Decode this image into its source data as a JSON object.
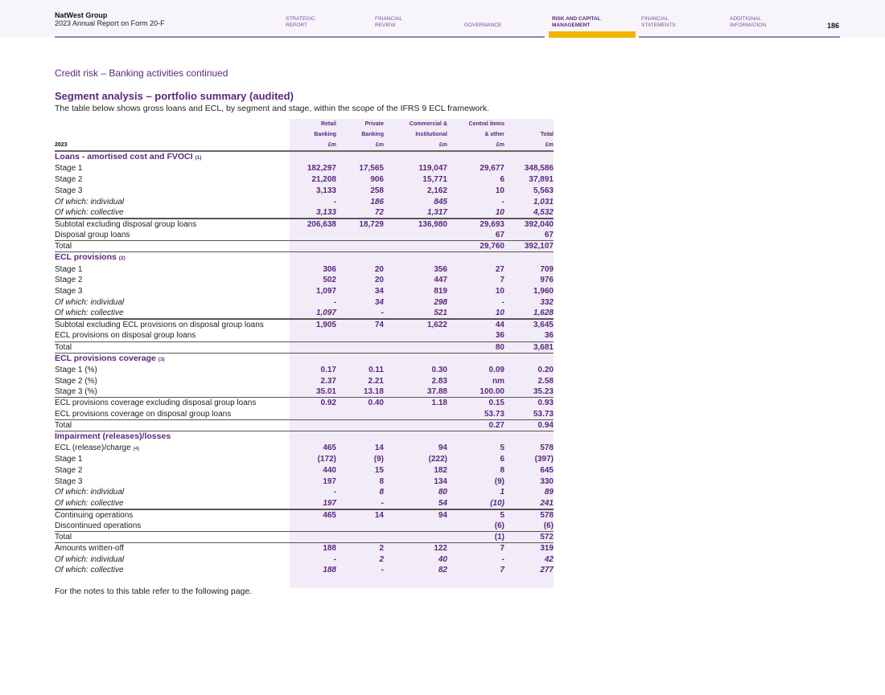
{
  "header": {
    "company": "NatWest Group",
    "report": "2023 Annual Report on Form 20-F",
    "page": "186",
    "nav": [
      {
        "line1": "STRATEGIC",
        "line2": "REPORT"
      },
      {
        "line1": "FINANCIAL",
        "line2": "REVIEW"
      },
      {
        "line1": "",
        "line2": "GOVERNANCE"
      },
      {
        "line1": "RISK AND CAPITAL",
        "line2": "MANAGEMENT",
        "active": true
      },
      {
        "line1": "FINANCIAL",
        "line2": "STATEMENTS"
      },
      {
        "line1": "ADDITIONAL",
        "line2": "INFORMATION"
      }
    ]
  },
  "breadcrumb": "Credit risk – Banking activities continued",
  "title": "Segment analysis – portfolio summary (audited)",
  "subtitle": "The table below shows gross loans and ECL, by segment and stage, within the scope of the IFRS 9 ECL framework.",
  "table": {
    "year": "2023",
    "columns": [
      [
        "Retail",
        "Banking",
        "£m"
      ],
      [
        "Private",
        "Banking",
        "£m"
      ],
      [
        "Commercial &",
        "Institutional",
        "£m"
      ],
      [
        "Central items",
        "& other",
        "£m"
      ],
      [
        "",
        "Total",
        "£m"
      ]
    ],
    "sections": [
      {
        "heading": "Loans - amortised cost and FVOCI",
        "note": "(1)",
        "rows": [
          {
            "label": "Stage 1",
            "values": [
              "182,297",
              "17,565",
              "119,047",
              "29,677",
              "348,586"
            ]
          },
          {
            "label": "Stage 2",
            "values": [
              "21,208",
              "906",
              "15,771",
              "6",
              "37,891"
            ]
          },
          {
            "label": "Stage 3",
            "values": [
              "3,133",
              "258",
              "2,162",
              "10",
              "5,563"
            ]
          },
          {
            "label": "Of which: individual",
            "values": [
              "-",
              "186",
              "845",
              "-",
              "1,031"
            ],
            "italic": true
          },
          {
            "label": "Of which: collective",
            "values": [
              "3,133",
              "72",
              "1,317",
              "10",
              "4,532"
            ],
            "italic": true
          },
          {
            "label": "Subtotal excluding disposal group loans",
            "values": [
              "206,638",
              "18,729",
              "136,980",
              "29,693",
              "392,040"
            ],
            "top": "thick"
          },
          {
            "label": "Disposal group loans",
            "values": [
              "",
              "",
              "",
              "67",
              "67"
            ]
          },
          {
            "label": "Total",
            "values": [
              "",
              "",
              "",
              "29,760",
              "392,107"
            ],
            "top": "thin"
          }
        ]
      },
      {
        "heading": "ECL provisions",
        "note": "(2)",
        "rows": [
          {
            "label": "Stage 1",
            "values": [
              "306",
              "20",
              "356",
              "27",
              "709"
            ]
          },
          {
            "label": "Stage 2",
            "values": [
              "502",
              "20",
              "447",
              "7",
              "976"
            ]
          },
          {
            "label": "Stage 3",
            "values": [
              "1,097",
              "34",
              "819",
              "10",
              "1,960"
            ]
          },
          {
            "label": "Of which: individual",
            "values": [
              "-",
              "34",
              "298",
              "-",
              "332"
            ],
            "italic": true
          },
          {
            "label": "Of which: collective",
            "values": [
              "1,097",
              "-",
              "521",
              "10",
              "1,628"
            ],
            "italic": true
          },
          {
            "label": "Subtotal excluding ECL provisions on disposal group loans",
            "values": [
              "1,905",
              "74",
              "1,622",
              "44",
              "3,645"
            ],
            "top": "thick"
          },
          {
            "label": "ECL provisions on disposal group loans",
            "values": [
              "",
              "",
              "",
              "36",
              "36"
            ]
          },
          {
            "label": "Total",
            "values": [
              "",
              "",
              "",
              "80",
              "3,681"
            ],
            "top": "thin"
          }
        ]
      },
      {
        "heading": "ECL provisions coverage",
        "note": "(3)",
        "rows": [
          {
            "label": "Stage 1 (%)",
            "values": [
              "0.17",
              "0.11",
              "0.30",
              "0.09",
              "0.20"
            ]
          },
          {
            "label": "Stage 2 (%)",
            "values": [
              "2.37",
              "2.21",
              "2.83",
              "nm",
              "2.58"
            ]
          },
          {
            "label": "Stage 3 (%)",
            "values": [
              "35.01",
              "13.18",
              "37.88",
              "100.00",
              "35.23"
            ]
          },
          {
            "label": "ECL provisions coverage excluding disposal group loans",
            "values": [
              "0.92",
              "0.40",
              "1.18",
              "0.15",
              "0.93"
            ],
            "top": "thin"
          },
          {
            "label": "ECL provisions coverage on disposal group loans",
            "values": [
              "",
              "",
              "",
              "53.73",
              "53.73"
            ]
          },
          {
            "label": "Total",
            "values": [
              "",
              "",
              "",
              "0.27",
              "0.94"
            ],
            "top": "thin"
          }
        ]
      },
      {
        "heading": "Impairment (releases)/losses",
        "note": "",
        "rows": [
          {
            "label": "ECL (release)/charge",
            "note": "(4)",
            "values": [
              "465",
              "14",
              "94",
              "5",
              "578"
            ]
          },
          {
            "label": "Stage 1",
            "values": [
              "(172)",
              "(9)",
              "(222)",
              "6",
              "(397)"
            ]
          },
          {
            "label": "Stage 2",
            "values": [
              "440",
              "15",
              "182",
              "8",
              "645"
            ]
          },
          {
            "label": "Stage 3",
            "values": [
              "197",
              "8",
              "134",
              "(9)",
              "330"
            ]
          },
          {
            "label": "Of which: individual",
            "values": [
              "-",
              "8",
              "80",
              "1",
              "89"
            ],
            "italic": true
          },
          {
            "label": "Of which: collective",
            "values": [
              "197",
              "-",
              "54",
              "(10)",
              "241"
            ],
            "italic": true
          },
          {
            "label": "Continuing operations",
            "values": [
              "465",
              "14",
              "94",
              "5",
              "578"
            ],
            "top": "thick"
          },
          {
            "label": "Discontinued operations",
            "values": [
              "",
              "",
              "",
              "(6)",
              "(6)"
            ]
          },
          {
            "label": "Total",
            "values": [
              "",
              "",
              "",
              "(1)",
              "572"
            ],
            "top": "thin"
          },
          {
            "label": "Amounts written-off",
            "values": [
              "188",
              "2",
              "122",
              "7",
              "319"
            ],
            "top": "thin"
          },
          {
            "label": "Of which: individual",
            "values": [
              "-",
              "2",
              "40",
              "-",
              "42"
            ],
            "italic": true
          },
          {
            "label": "Of which: collective",
            "values": [
              "188",
              "-",
              "82",
              "7",
              "277"
            ],
            "italic": true
          }
        ]
      }
    ]
  },
  "footnote": "For the notes to this table refer to the following page."
}
